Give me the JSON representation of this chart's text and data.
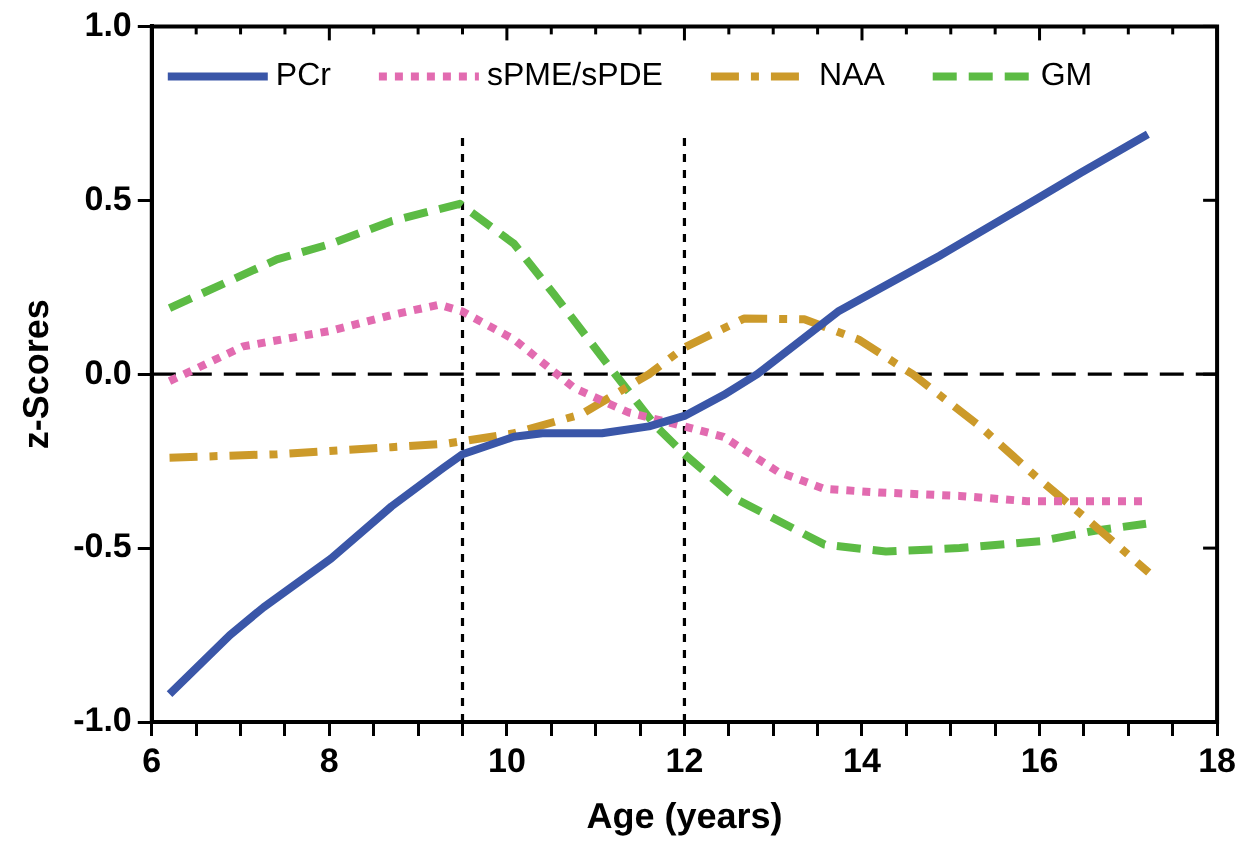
{
  "chart_data": {
    "type": "line",
    "xlabel": "Age (years)",
    "ylabel": "z-Scores",
    "xlim": [
      6,
      18
    ],
    "ylim": [
      -1,
      1
    ],
    "xticks": [
      6,
      {
        "value": 6.5,
        "label": null
      },
      {
        "value": 7,
        "label": null
      },
      {
        "value": 7.5,
        "label": null
      },
      8,
      {
        "value": 8.5,
        "label": null
      },
      {
        "value": 9,
        "label": null
      },
      {
        "value": 9.5,
        "label": null
      },
      10,
      {
        "value": 10.5,
        "label": null
      },
      {
        "value": 11,
        "label": null
      },
      {
        "value": 11.5,
        "label": null
      },
      12,
      {
        "value": 12.5,
        "label": null
      },
      {
        "value": 13,
        "label": null
      },
      {
        "value": 13.5,
        "label": null
      },
      14,
      {
        "value": 14.5,
        "label": null
      },
      {
        "value": 15,
        "label": null
      },
      {
        "value": 15.5,
        "label": null
      },
      16,
      {
        "value": 16.5,
        "label": null
      },
      {
        "value": 17,
        "label": null
      },
      {
        "value": 17.5,
        "label": null
      },
      18
    ],
    "yticks": [
      {
        "value": -1,
        "label": "-1.0"
      },
      {
        "value": -0.5,
        "label": "-0.5"
      },
      {
        "value": 0,
        "label": "0.0"
      },
      {
        "value": 0.5,
        "label": "0.5"
      },
      {
        "value": 1,
        "label": "1.0"
      }
    ],
    "grid": false,
    "legend": "top",
    "marker": "none",
    "ref_lines": [
      {
        "axis": "y",
        "value": 0,
        "line_style": "dashed",
        "color": "#000000"
      },
      {
        "axis": "x",
        "value": 9.5,
        "line_style": "dotted",
        "color": "#000000"
      },
      {
        "axis": "x",
        "value": 12,
        "line_style": "dotted",
        "color": "#000000"
      }
    ],
    "series": [
      {
        "name": "PCr",
        "color": "#3a56a8",
        "line_style": "solid",
        "x": [
          6.2,
          6.88,
          7.26,
          8.02,
          8.7,
          9.28,
          9.5,
          10.08,
          10.4,
          11.07,
          11.6,
          12,
          12.44,
          12.82,
          13.73,
          14.87,
          16.01,
          16.47,
          17.22
        ],
        "values": [
          -0.92,
          -0.75,
          -0.67,
          -0.53,
          -0.38,
          -0.27,
          -0.23,
          -0.18,
          -0.17,
          -0.17,
          -0.15,
          -0.12,
          -0.06,
          0,
          0.18,
          0.34,
          0.51,
          0.58,
          0.69
        ]
      },
      {
        "name": "sPME/sPDE",
        "color": "#e26bb0",
        "line_style": "dotted",
        "x": [
          6.2,
          7.03,
          8.02,
          8.7,
          9.24,
          9.5,
          10.08,
          10.76,
          11.37,
          12,
          12.44,
          13.05,
          13.58,
          14.19,
          15.1,
          15.86,
          17.23
        ],
        "values": [
          -0.02,
          0.08,
          0.125,
          0.17,
          0.2,
          0.18,
          0.1,
          -0.04,
          -0.11,
          -0.15,
          -0.18,
          -0.28,
          -0.33,
          -0.34,
          -0.35,
          -0.365,
          -0.365
        ]
      },
      {
        "name": "NAA",
        "color": "#cc9a2a",
        "line_style": "dashdot",
        "x": [
          6.2,
          7.41,
          8.7,
          9.31,
          10.08,
          10.84,
          11.6,
          12,
          12.67,
          13.35,
          13.96,
          14.57,
          15.33,
          15.94,
          16.55,
          17.23
        ],
        "values": [
          -0.24,
          -0.23,
          -0.21,
          -0.2,
          -0.17,
          -0.115,
          0,
          0.077,
          0.16,
          0.158,
          0.1,
          0,
          -0.15,
          -0.29,
          -0.42,
          -0.57
        ]
      },
      {
        "name": "GM",
        "color": "#5cbb44",
        "line_style": "dashed",
        "x": [
          6.2,
          7.41,
          8.02,
          8.7,
          9.47,
          10.08,
          10.53,
          11.22,
          11.68,
          12,
          12.59,
          13.58,
          14.27,
          15.1,
          16.01,
          16.62,
          17.2
        ],
        "values": [
          0.19,
          0.33,
          0.375,
          0.44,
          0.49,
          0.375,
          0.23,
          0,
          -0.15,
          -0.23,
          -0.36,
          -0.49,
          -0.51,
          -0.5,
          -0.48,
          -0.45,
          -0.43
        ]
      }
    ]
  }
}
